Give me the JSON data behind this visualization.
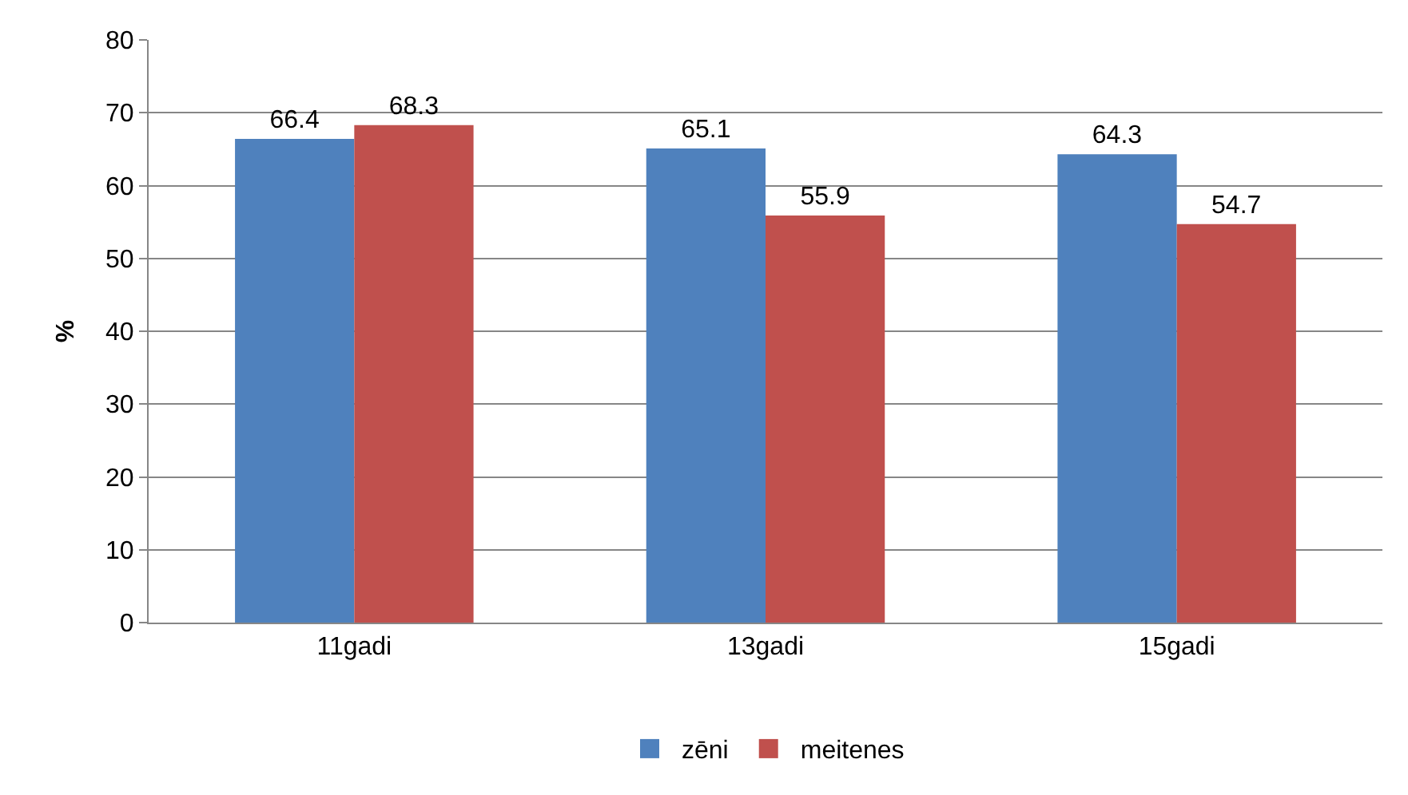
{
  "chart_data": {
    "type": "bar",
    "ylabel": "%",
    "categories": [
      "11gadi",
      "13gadi",
      "15gadi"
    ],
    "series": [
      {
        "name": "zēni",
        "color": "#4f81bd",
        "values": [
          66.4,
          65.1,
          64.3
        ]
      },
      {
        "name": "meitenes",
        "color": "#c0504d",
        "values": [
          68.3,
          55.9,
          54.7
        ]
      }
    ],
    "ylim": [
      0,
      80
    ],
    "yticks": [
      0,
      10,
      20,
      30,
      40,
      50,
      60,
      70,
      80
    ],
    "grid": "y",
    "legend": "bottom",
    "data_labels": true
  }
}
